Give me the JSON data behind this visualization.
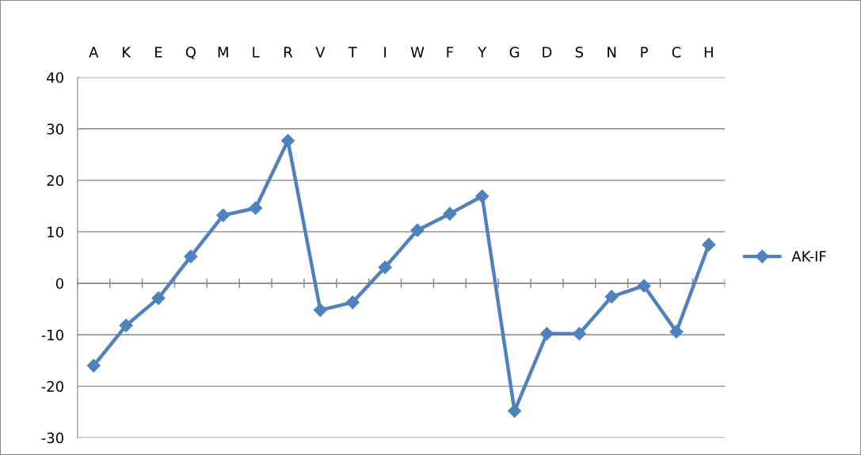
{
  "chart_data": {
    "type": "line",
    "categories": [
      "A",
      "K",
      "E",
      "Q",
      "M",
      "L",
      "R",
      "V",
      "T",
      "I",
      "W",
      "F",
      "Y",
      "G",
      "D",
      "S",
      "N",
      "P",
      "C",
      "H"
    ],
    "series": [
      {
        "name": "AK-IF",
        "color": "#4f81bd",
        "values": [
          -16.0,
          -8.2,
          -2.9,
          5.2,
          13.2,
          14.6,
          27.7,
          -5.2,
          -3.7,
          3.1,
          10.3,
          13.5,
          16.9,
          -24.8,
          -9.8,
          -9.8,
          -2.6,
          -0.5,
          -9.4,
          7.5
        ]
      }
    ],
    "ylim": [
      -30,
      40
    ],
    "yticks": [
      -30,
      -20,
      -10,
      0,
      10,
      20,
      30,
      40
    ],
    "grid": "y",
    "legend": "right",
    "marker": "diamond",
    "line_style": "solid"
  }
}
